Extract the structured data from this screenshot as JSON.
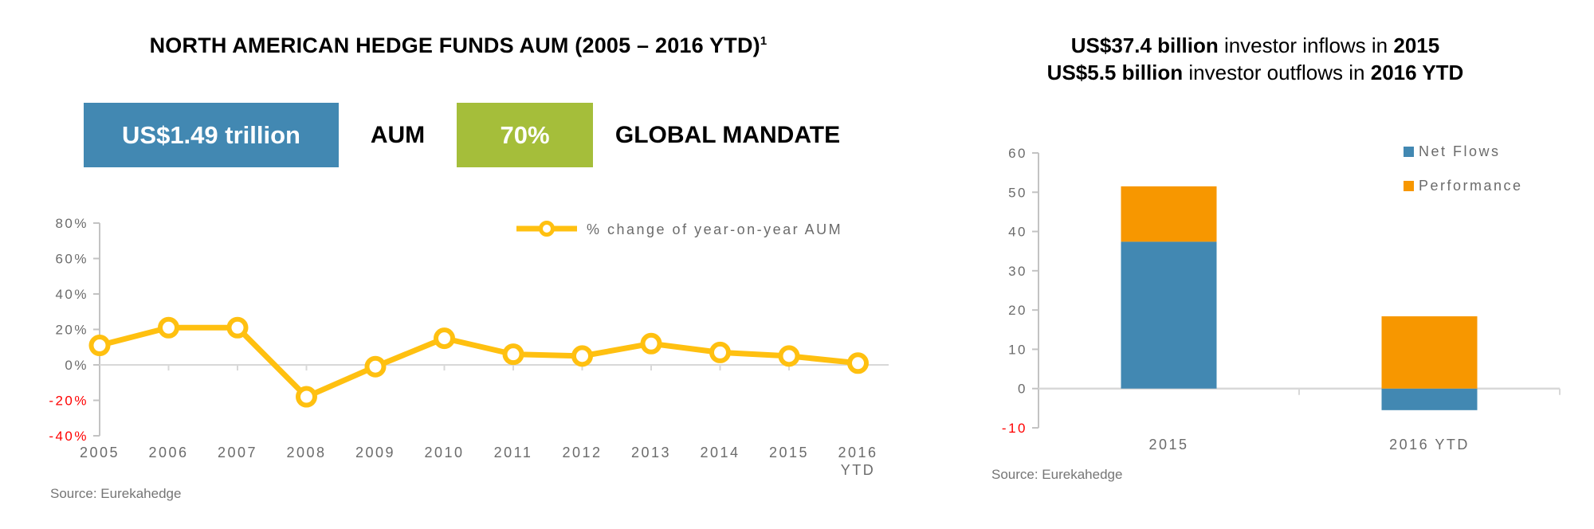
{
  "colors": {
    "blue": "#4288B2",
    "green": "#A5BE3A",
    "yellow": "#FFC010",
    "orange": "#F79700",
    "axis_text": "#6B6B6B",
    "negative_text": "#FF0000",
    "axis_line": "#C3C3C3",
    "zero_line": "#D8D8D8",
    "source_text": "#757575",
    "title_text": "#000000"
  },
  "left_panel": {
    "title": "NORTH AMERICAN HEDGE FUNDS AUM (2005 – 2016 YTD)",
    "title_superscript": "1",
    "aum_badge": {
      "value": "US$1.49 trillion",
      "label": "AUM"
    },
    "mandate_badge": {
      "value": "70%",
      "label": "GLOBAL MANDATE"
    },
    "source": "Source: Eurekahedge"
  },
  "right_panel": {
    "title_line1": {
      "amount": "US$37.4 billion",
      "text": " investor inflows in ",
      "year": "2015"
    },
    "title_line2": {
      "amount": "US$5.5 billion",
      "text": " investor outflows in ",
      "year": "2016 YTD"
    },
    "source": "Source: Eurekahedge"
  },
  "chart_data": [
    {
      "type": "line",
      "title": "NORTH AMERICAN HEDGE FUNDS AUM (2005 – 2016 YTD)",
      "categories": [
        "2005",
        "2006",
        "2007",
        "2008",
        "2009",
        "2010",
        "2011",
        "2012",
        "2013",
        "2014",
        "2015",
        "2016 YTD"
      ],
      "series": [
        {
          "name": "% change of year-on-year AUM",
          "color": "#FFC010",
          "marker": "open-circle",
          "values": [
            11,
            21,
            21,
            -18,
            -1,
            15,
            6,
            5,
            12,
            7,
            5,
            1
          ]
        }
      ],
      "xlabel": "",
      "ylabel": "",
      "ylim": [
        -40,
        80
      ],
      "ytick_step": 20,
      "ytick_suffix": "%",
      "grid": false,
      "legend_position": "top-right",
      "negative_ticks_red": true
    },
    {
      "type": "bar",
      "stacked": true,
      "title": "US$37.4 billion investor inflows in 2015; US$5.5 billion investor outflows in 2016 YTD",
      "categories": [
        "2015",
        "2016 YTD"
      ],
      "series": [
        {
          "name": "Net Flows",
          "color": "#4288B2",
          "values": [
            37.4,
            -5.5
          ]
        },
        {
          "name": "Performance",
          "color": "#F79700",
          "values": [
            14.1,
            18.4
          ]
        }
      ],
      "xlabel": "",
      "ylabel": "",
      "ylim": [
        -10,
        60
      ],
      "ytick_step": 10,
      "ytick_suffix": "",
      "grid": false,
      "legend_position": "top-right",
      "negative_ticks_red": true
    }
  ]
}
